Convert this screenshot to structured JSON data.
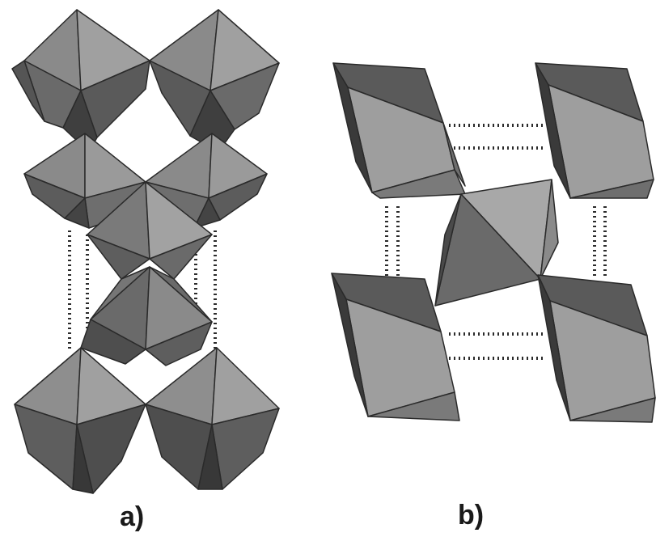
{
  "panels": [
    {
      "label": "a)"
    },
    {
      "label": "b)"
    }
  ],
  "colors": {
    "light_face": "#9c9c9c",
    "mid_face": "#7e7e7e",
    "dark_face": "#5c5c5c",
    "darkest_face": "#3e3e3e",
    "edge": "#2a2a2a",
    "bond_dots": "#2b2b2b",
    "label": "#1a1a1a"
  }
}
